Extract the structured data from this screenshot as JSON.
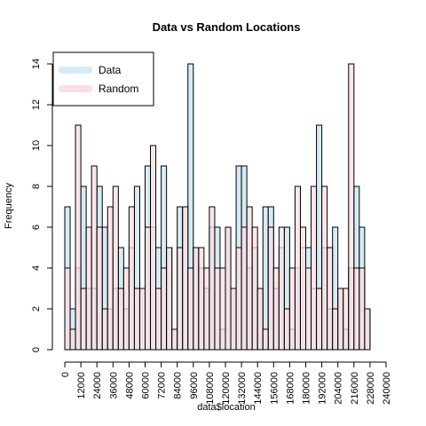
{
  "chart_data": {
    "type": "bar",
    "title": "Data vs Random Locations",
    "xlabel": "data$location",
    "ylabel": "Frequency",
    "xlim": [
      0,
      240000
    ],
    "ylim": [
      0,
      14
    ],
    "bin_width": 4000,
    "x_ticks": [
      0,
      12000,
      24000,
      36000,
      48000,
      60000,
      72000,
      84000,
      96000,
      108000,
      120000,
      132000,
      144000,
      156000,
      168000,
      180000,
      192000,
      204000,
      216000,
      228000,
      240000
    ],
    "x_tick_labels": [
      "0",
      "12000",
      "24000",
      "36000",
      "48000",
      "60000",
      "72000",
      "84000",
      "96000",
      "108000",
      "120000",
      "132000",
      "144000",
      "156000",
      "168000",
      "180000",
      "192000",
      "204000",
      "216000",
      "228000",
      "240000"
    ],
    "y_ticks": [
      0,
      2,
      4,
      6,
      8,
      10,
      12,
      14
    ],
    "y_tick_labels": [
      "0",
      "2",
      "4",
      "6",
      "8",
      "10",
      "12",
      "14"
    ],
    "legend_position": "top-left",
    "series": [
      {
        "name": "Data",
        "color": "#d6ebf5",
        "x": [
          0,
          4000,
          8000,
          12000,
          16000,
          20000,
          24000,
          28000,
          32000,
          36000,
          40000,
          44000,
          48000,
          52000,
          56000,
          60000,
          64000,
          68000,
          72000,
          76000,
          80000,
          84000,
          88000,
          92000,
          96000,
          100000,
          104000,
          108000,
          112000,
          116000,
          120000,
          124000,
          128000,
          132000,
          136000,
          140000,
          144000,
          148000,
          152000,
          156000,
          160000,
          164000,
          168000,
          172000,
          176000,
          180000,
          184000,
          188000,
          192000,
          196000,
          200000,
          204000,
          208000,
          212000,
          216000,
          220000,
          224000
        ],
        "values": [
          7,
          2,
          4,
          8,
          3,
          3,
          8,
          6,
          2,
          3,
          5,
          2,
          5,
          8,
          3,
          9,
          6,
          5,
          9,
          5,
          1,
          7,
          7,
          14,
          5,
          4,
          3,
          6,
          6,
          1,
          6,
          3,
          9,
          9,
          4,
          5,
          3,
          7,
          7,
          3,
          5,
          6,
          1,
          4,
          5,
          5,
          3,
          11,
          5,
          2,
          6,
          3,
          1,
          4,
          8,
          6,
          2
        ]
      },
      {
        "name": "Random",
        "color": "#fbdde2",
        "x": [
          0,
          4000,
          8000,
          12000,
          16000,
          20000,
          24000,
          28000,
          32000,
          36000,
          40000,
          44000,
          48000,
          52000,
          56000,
          60000,
          64000,
          68000,
          72000,
          76000,
          80000,
          84000,
          88000,
          92000,
          96000,
          100000,
          104000,
          108000,
          112000,
          116000,
          120000,
          124000,
          128000,
          132000,
          136000,
          140000,
          144000,
          148000,
          152000,
          156000,
          160000,
          164000,
          168000,
          172000,
          176000,
          180000,
          184000,
          188000,
          192000,
          196000,
          200000,
          204000,
          208000,
          212000,
          216000,
          220000,
          224000
        ],
        "values": [
          4,
          1,
          11,
          3,
          6,
          9,
          6,
          2,
          7,
          8,
          3,
          4,
          7,
          3,
          3,
          6,
          10,
          3,
          4,
          5,
          1,
          5,
          7,
          4,
          5,
          5,
          4,
          7,
          4,
          4,
          6,
          3,
          5,
          6,
          7,
          6,
          3,
          1,
          6,
          4,
          6,
          2,
          4,
          8,
          6,
          4,
          8,
          3,
          8,
          5,
          2,
          3,
          3,
          14,
          4,
          4,
          2
        ]
      }
    ]
  }
}
